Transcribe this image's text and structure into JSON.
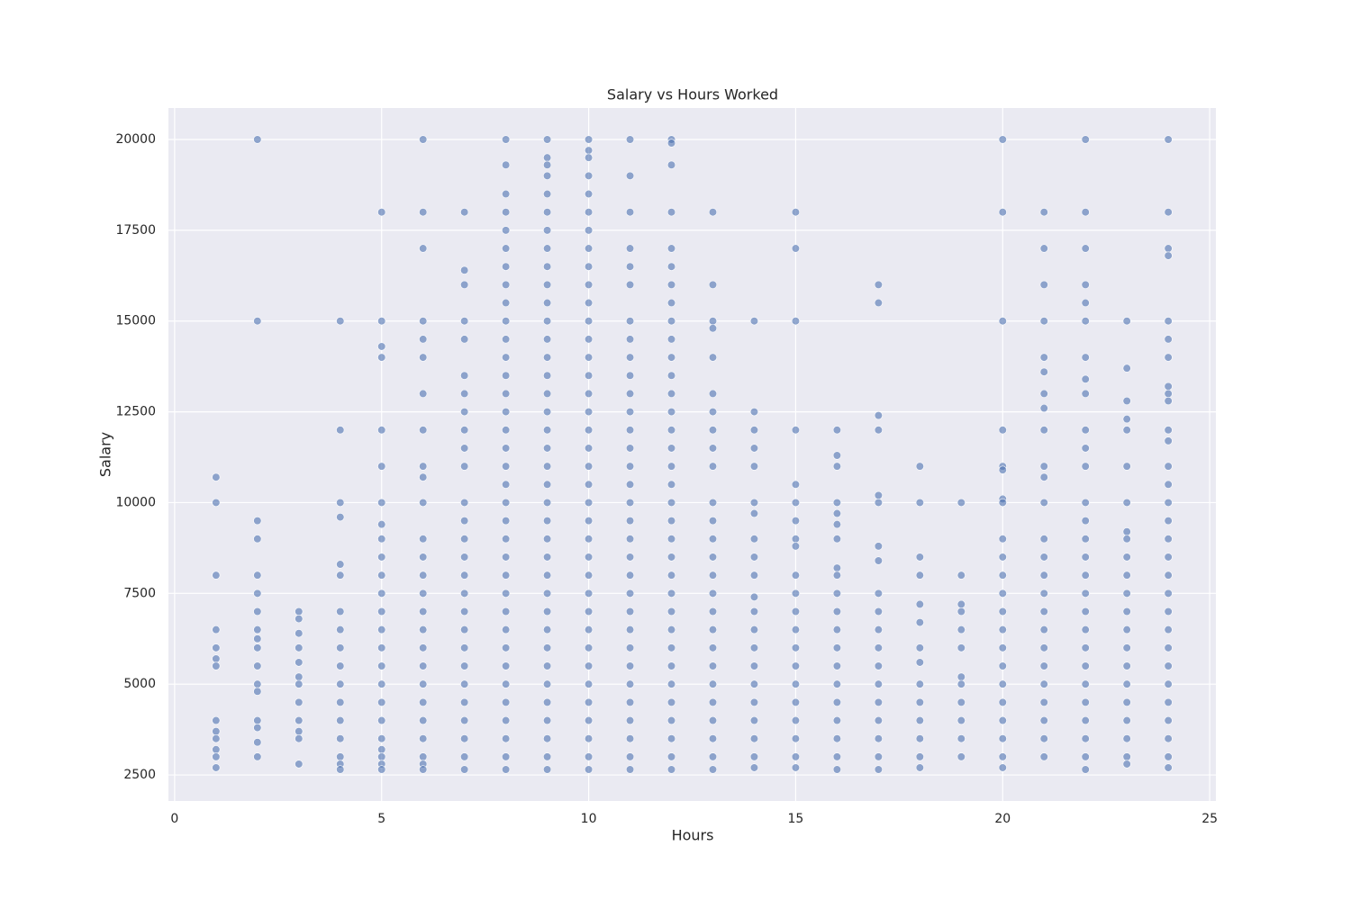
{
  "chart_data": {
    "type": "scatter",
    "title": "Salary vs Hours Worked",
    "x_label": "Hours",
    "y_label": "Salary",
    "color": "#4c72b0",
    "grid": true,
    "xlim": [
      -0.15,
      25.15
    ],
    "ylim": [
      1782.5,
      20867.5
    ],
    "xticks": [
      0,
      5,
      10,
      15,
      20,
      25
    ],
    "yticks": [
      2500,
      5000,
      7500,
      10000,
      12500,
      15000,
      17500,
      20000
    ],
    "x": [
      1,
      1,
      1,
      1,
      1,
      1,
      1,
      1,
      1,
      1,
      1,
      1,
      1,
      2,
      2,
      2,
      2,
      2,
      2,
      2,
      2,
      2,
      2,
      2,
      2,
      2,
      2,
      2,
      2,
      2,
      3,
      3,
      3,
      3,
      3,
      3,
      3,
      3,
      3,
      3,
      3,
      3,
      4,
      4,
      4,
      4,
      4,
      4,
      4,
      4,
      4,
      4,
      4,
      4,
      4,
      4,
      4,
      4,
      4,
      5,
      5,
      5,
      5,
      5,
      5,
      5,
      5,
      5,
      5,
      5,
      5,
      5,
      5,
      5,
      5,
      5,
      5,
      5,
      5,
      5,
      5,
      5,
      5,
      6,
      6,
      6,
      6,
      6,
      6,
      6,
      6,
      6,
      6,
      6,
      6,
      6,
      6,
      6,
      6,
      6,
      6,
      6,
      6,
      6,
      6,
      6,
      6,
      6,
      6,
      7,
      7,
      7,
      7,
      7,
      7,
      7,
      7,
      7,
      7,
      7,
      7,
      7,
      7,
      7,
      7,
      7,
      7,
      7,
      7,
      7,
      7,
      7,
      7,
      7,
      7,
      7,
      8,
      8,
      8,
      8,
      8,
      8,
      8,
      8,
      8,
      8,
      8,
      8,
      8,
      8,
      8,
      8,
      8,
      8,
      8,
      8,
      8,
      8,
      8,
      8,
      8,
      8,
      8,
      8,
      8,
      8,
      8,
      8,
      8,
      8,
      8,
      9,
      9,
      9,
      9,
      9,
      9,
      9,
      9,
      9,
      9,
      9,
      9,
      9,
      9,
      9,
      9,
      9,
      9,
      9,
      9,
      9,
      9,
      9,
      9,
      9,
      9,
      9,
      9,
      9,
      9,
      9,
      9,
      9,
      9,
      9,
      9,
      9,
      10,
      10,
      10,
      10,
      10,
      10,
      10,
      10,
      10,
      10,
      10,
      10,
      10,
      10,
      10,
      10,
      10,
      10,
      10,
      10,
      10,
      10,
      10,
      10,
      10,
      10,
      10,
      10,
      10,
      10,
      10,
      10,
      10,
      10,
      10,
      10,
      10,
      11,
      11,
      11,
      11,
      11,
      11,
      11,
      11,
      11,
      11,
      11,
      11,
      11,
      11,
      11,
      11,
      11,
      11,
      11,
      11,
      11,
      11,
      11,
      11,
      11,
      11,
      11,
      11,
      11,
      11,
      11,
      11,
      12,
      12,
      12,
      12,
      12,
      12,
      12,
      12,
      12,
      12,
      12,
      12,
      12,
      12,
      12,
      12,
      12,
      12,
      12,
      12,
      12,
      12,
      12,
      12,
      12,
      12,
      12,
      12,
      12,
      12,
      12,
      12,
      12,
      12,
      13,
      13,
      13,
      13,
      13,
      13,
      13,
      13,
      13,
      13,
      13,
      13,
      13,
      13,
      13,
      13,
      13,
      13,
      13,
      13,
      13,
      13,
      13,
      13,
      13,
      13,
      14,
      14,
      14,
      14,
      14,
      14,
      14,
      14,
      14,
      14,
      14,
      14,
      14,
      14,
      14,
      14,
      14,
      14,
      14,
      14,
      14,
      15,
      15,
      15,
      15,
      15,
      15,
      15,
      15,
      15,
      15,
      15,
      15,
      15,
      15,
      15,
      15,
      15,
      15,
      15,
      15,
      15,
      16,
      16,
      16,
      16,
      16,
      16,
      16,
      16,
      16,
      16,
      16,
      16,
      16,
      16,
      16,
      16,
      16,
      16,
      16,
      16,
      17,
      17,
      17,
      17,
      17,
      17,
      17,
      17,
      17,
      17,
      17,
      17,
      17,
      17,
      17,
      17,
      17,
      17,
      17,
      18,
      18,
      18,
      18,
      18,
      18,
      18,
      18,
      18,
      18,
      18,
      18,
      18,
      18,
      19,
      19,
      19,
      19,
      19,
      19,
      19,
      19,
      19,
      19,
      19,
      19,
      20,
      20,
      20,
      20,
      20,
      20,
      20,
      20,
      20,
      20,
      20,
      20,
      20,
      20,
      20,
      20,
      20,
      20,
      20,
      20,
      20,
      20,
      21,
      21,
      21,
      21,
      21,
      21,
      21,
      21,
      21,
      21,
      21,
      21,
      21,
      21,
      21,
      21,
      21,
      21,
      21,
      21,
      21,
      21,
      21,
      21,
      21,
      22,
      22,
      22,
      22,
      22,
      22,
      22,
      22,
      22,
      22,
      22,
      22,
      22,
      22,
      22,
      22,
      22,
      22,
      22,
      22,
      22,
      22,
      22,
      22,
      22,
      22,
      22,
      22,
      23,
      23,
      23,
      23,
      23,
      23,
      23,
      23,
      23,
      23,
      23,
      23,
      23,
      23,
      23,
      23,
      23,
      23,
      23,
      23,
      23,
      23,
      24,
      24,
      24,
      24,
      24,
      24,
      24,
      24,
      24,
      24,
      24,
      24,
      24,
      24,
      24,
      24,
      24,
      24,
      24,
      24,
      24,
      24,
      24,
      24,
      24,
      24,
      24,
      24,
      24,
      24
    ],
    "values": [
      10700,
      10000,
      8000,
      6500,
      6000,
      5700,
      5500,
      4000,
      3700,
      3500,
      3200,
      3000,
      2700,
      20000,
      15000,
      9500,
      9000,
      8000,
      7500,
      7000,
      6500,
      6250,
      6000,
      5500,
      5000,
      4800,
      4000,
      3800,
      3400,
      3000,
      7000,
      6800,
      6400,
      6000,
      5600,
      5200,
      5000,
      4500,
      4000,
      3700,
      3500,
      2800,
      15000,
      12000,
      10000,
      9600,
      8300,
      8000,
      7000,
      6500,
      6000,
      5500,
      5000,
      4500,
      4000,
      3500,
      3000,
      2800,
      2650,
      18000,
      15000,
      14300,
      14000,
      12000,
      11000,
      10000,
      9400,
      9000,
      8500,
      8000,
      7500,
      7000,
      6500,
      6000,
      5500,
      5000,
      4500,
      4000,
      3500,
      3200,
      3000,
      2800,
      2650,
      20000,
      18000,
      17000,
      15000,
      14500,
      14000,
      13000,
      12000,
      11000,
      10700,
      10000,
      9000,
      8500,
      8000,
      7500,
      7000,
      6500,
      6000,
      5500,
      5000,
      4500,
      4000,
      3500,
      3000,
      2800,
      2650,
      18000,
      16400,
      16000,
      15000,
      14500,
      13500,
      13000,
      12500,
      12000,
      11500,
      11000,
      10000,
      9500,
      9000,
      8500,
      8000,
      7500,
      7000,
      6500,
      6000,
      5500,
      5000,
      4500,
      4000,
      3500,
      3000,
      2650,
      20000,
      19300,
      18500,
      18000,
      17500,
      17000,
      16500,
      16000,
      15500,
      15000,
      14500,
      14000,
      13500,
      13000,
      12500,
      12000,
      11500,
      11000,
      10500,
      10000,
      9500,
      9000,
      8500,
      8000,
      7500,
      7000,
      6500,
      6000,
      5500,
      5000,
      4500,
      4000,
      3500,
      3000,
      2650,
      20000,
      19500,
      19300,
      19000,
      18500,
      18000,
      17500,
      17000,
      16500,
      16000,
      15500,
      15000,
      14500,
      14000,
      13500,
      13000,
      12500,
      12000,
      11500,
      11000,
      10500,
      10000,
      9500,
      9000,
      8500,
      8000,
      7500,
      7000,
      6500,
      6000,
      5500,
      5000,
      4500,
      4000,
      3500,
      3000,
      2650,
      20000,
      19700,
      19500,
      19000,
      18500,
      18000,
      17500,
      17000,
      16500,
      16000,
      15500,
      15000,
      14500,
      14000,
      13500,
      13000,
      12500,
      12000,
      11500,
      11000,
      10500,
      10000,
      9500,
      9000,
      8500,
      8000,
      7500,
      7000,
      6500,
      6000,
      5500,
      5000,
      4500,
      4000,
      3500,
      3000,
      2650,
      20000,
      19000,
      18000,
      17000,
      16500,
      16000,
      15000,
      14500,
      14000,
      13500,
      13000,
      12500,
      12000,
      11500,
      11000,
      10500,
      10000,
      9500,
      9000,
      8500,
      8000,
      7500,
      7000,
      6500,
      6000,
      5500,
      5000,
      4500,
      4000,
      3500,
      3000,
      2650,
      20000,
      19900,
      19300,
      18000,
      17000,
      16500,
      16000,
      15500,
      15000,
      14500,
      14000,
      13500,
      13000,
      12500,
      12000,
      11500,
      11000,
      10500,
      10000,
      9500,
      9000,
      8500,
      8000,
      7500,
      7000,
      6500,
      6000,
      5500,
      5000,
      4500,
      4000,
      3500,
      3000,
      2650,
      18000,
      16000,
      15000,
      14800,
      14000,
      13000,
      12500,
      12000,
      11500,
      11000,
      10000,
      9500,
      9000,
      8500,
      8000,
      7500,
      7000,
      6500,
      6000,
      5500,
      5000,
      4500,
      4000,
      3500,
      3000,
      2650,
      15000,
      12500,
      12000,
      11500,
      11000,
      10000,
      9700,
      9000,
      8500,
      8000,
      7400,
      7000,
      6500,
      6000,
      5500,
      5000,
      4500,
      4000,
      3500,
      3000,
      2700,
      18000,
      17000,
      15000,
      12000,
      10500,
      10000,
      9500,
      9000,
      8800,
      8000,
      7500,
      7000,
      6500,
      6000,
      5500,
      5000,
      4500,
      4000,
      3500,
      3000,
      2700,
      12000,
      11300,
      11000,
      10000,
      9700,
      9400,
      9000,
      8200,
      8000,
      7500,
      7000,
      6500,
      6000,
      5500,
      5000,
      4500,
      4000,
      3500,
      3000,
      2650,
      16000,
      15500,
      12400,
      12000,
      10200,
      10000,
      8800,
      8400,
      7500,
      7000,
      6500,
      6000,
      5500,
      5000,
      4500,
      4000,
      3500,
      3000,
      2650,
      11000,
      10000,
      8500,
      8000,
      7200,
      6700,
      6000,
      5600,
      5000,
      4500,
      4000,
      3500,
      3000,
      2700,
      10000,
      8000,
      7200,
      7000,
      6500,
      6000,
      5200,
      5000,
      4500,
      4000,
      3500,
      3000,
      20000,
      18000,
      15000,
      12000,
      11000,
      10900,
      10100,
      10000,
      9000,
      8500,
      8000,
      7500,
      7000,
      6500,
      6000,
      5500,
      5000,
      4500,
      4000,
      3500,
      3000,
      2700,
      18000,
      17000,
      16000,
      15000,
      14000,
      13600,
      13000,
      12600,
      12000,
      11000,
      10700,
      10000,
      9000,
      8500,
      8000,
      7500,
      7000,
      6500,
      6000,
      5500,
      5000,
      4500,
      4000,
      3500,
      3000,
      20000,
      18000,
      17000,
      16000,
      15500,
      15000,
      14000,
      13400,
      13000,
      12000,
      11500,
      11000,
      10000,
      9500,
      9000,
      8500,
      8000,
      7500,
      7000,
      6500,
      6000,
      5500,
      5000,
      4500,
      4000,
      3500,
      3000,
      2650,
      15000,
      13700,
      12800,
      12300,
      12000,
      11000,
      10000,
      9200,
      9000,
      8500,
      8000,
      7500,
      7000,
      6500,
      6000,
      5500,
      5000,
      4500,
      4000,
      3500,
      3000,
      2800,
      20000,
      18000,
      17000,
      16800,
      15000,
      14500,
      14000,
      13200,
      13000,
      12800,
      12000,
      11700,
      11000,
      10500,
      10000,
      9500,
      9000,
      8500,
      8000,
      7500,
      7000,
      6500,
      6000,
      5500,
      5000,
      4500,
      4000,
      3500,
      3000,
      2700
    ]
  }
}
